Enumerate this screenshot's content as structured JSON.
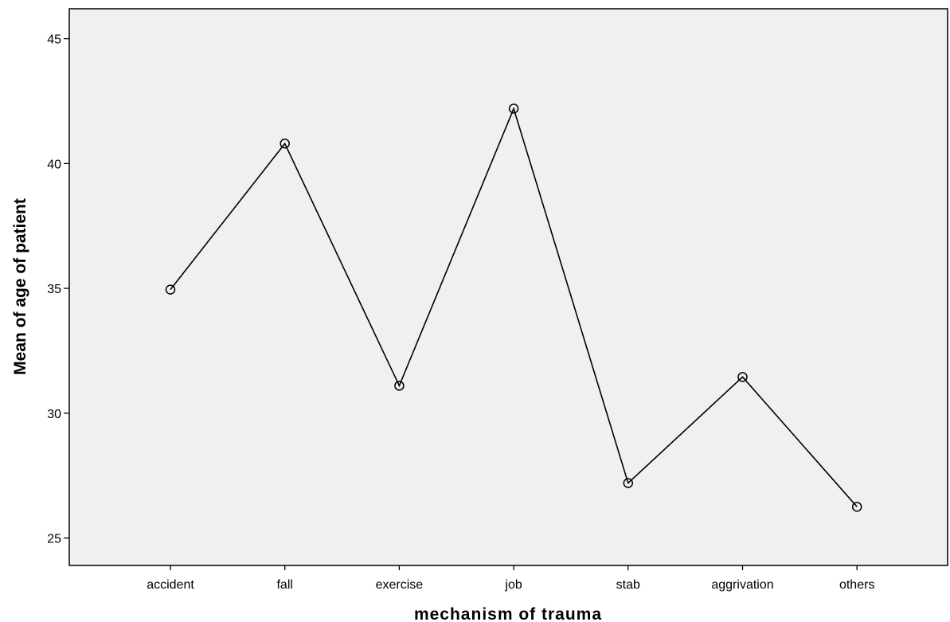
{
  "chart_data": {
    "type": "line",
    "title": "",
    "xlabel": "mechanism of trauma",
    "ylabel": "Mean of age of patient",
    "categories": [
      "accident",
      "fall",
      "exercise",
      "job",
      "stab",
      "aggrivation",
      "others"
    ],
    "values": [
      34.95,
      40.8,
      31.1,
      42.2,
      27.2,
      31.45,
      26.25
    ],
    "ylim": [
      23.9,
      46.2
    ],
    "yticks": [
      "25",
      "30",
      "35",
      "40",
      "45"
    ],
    "grid": false,
    "marker": "circle",
    "colors": {
      "plot_background": "#f0f0f0",
      "line": "#000000"
    }
  }
}
